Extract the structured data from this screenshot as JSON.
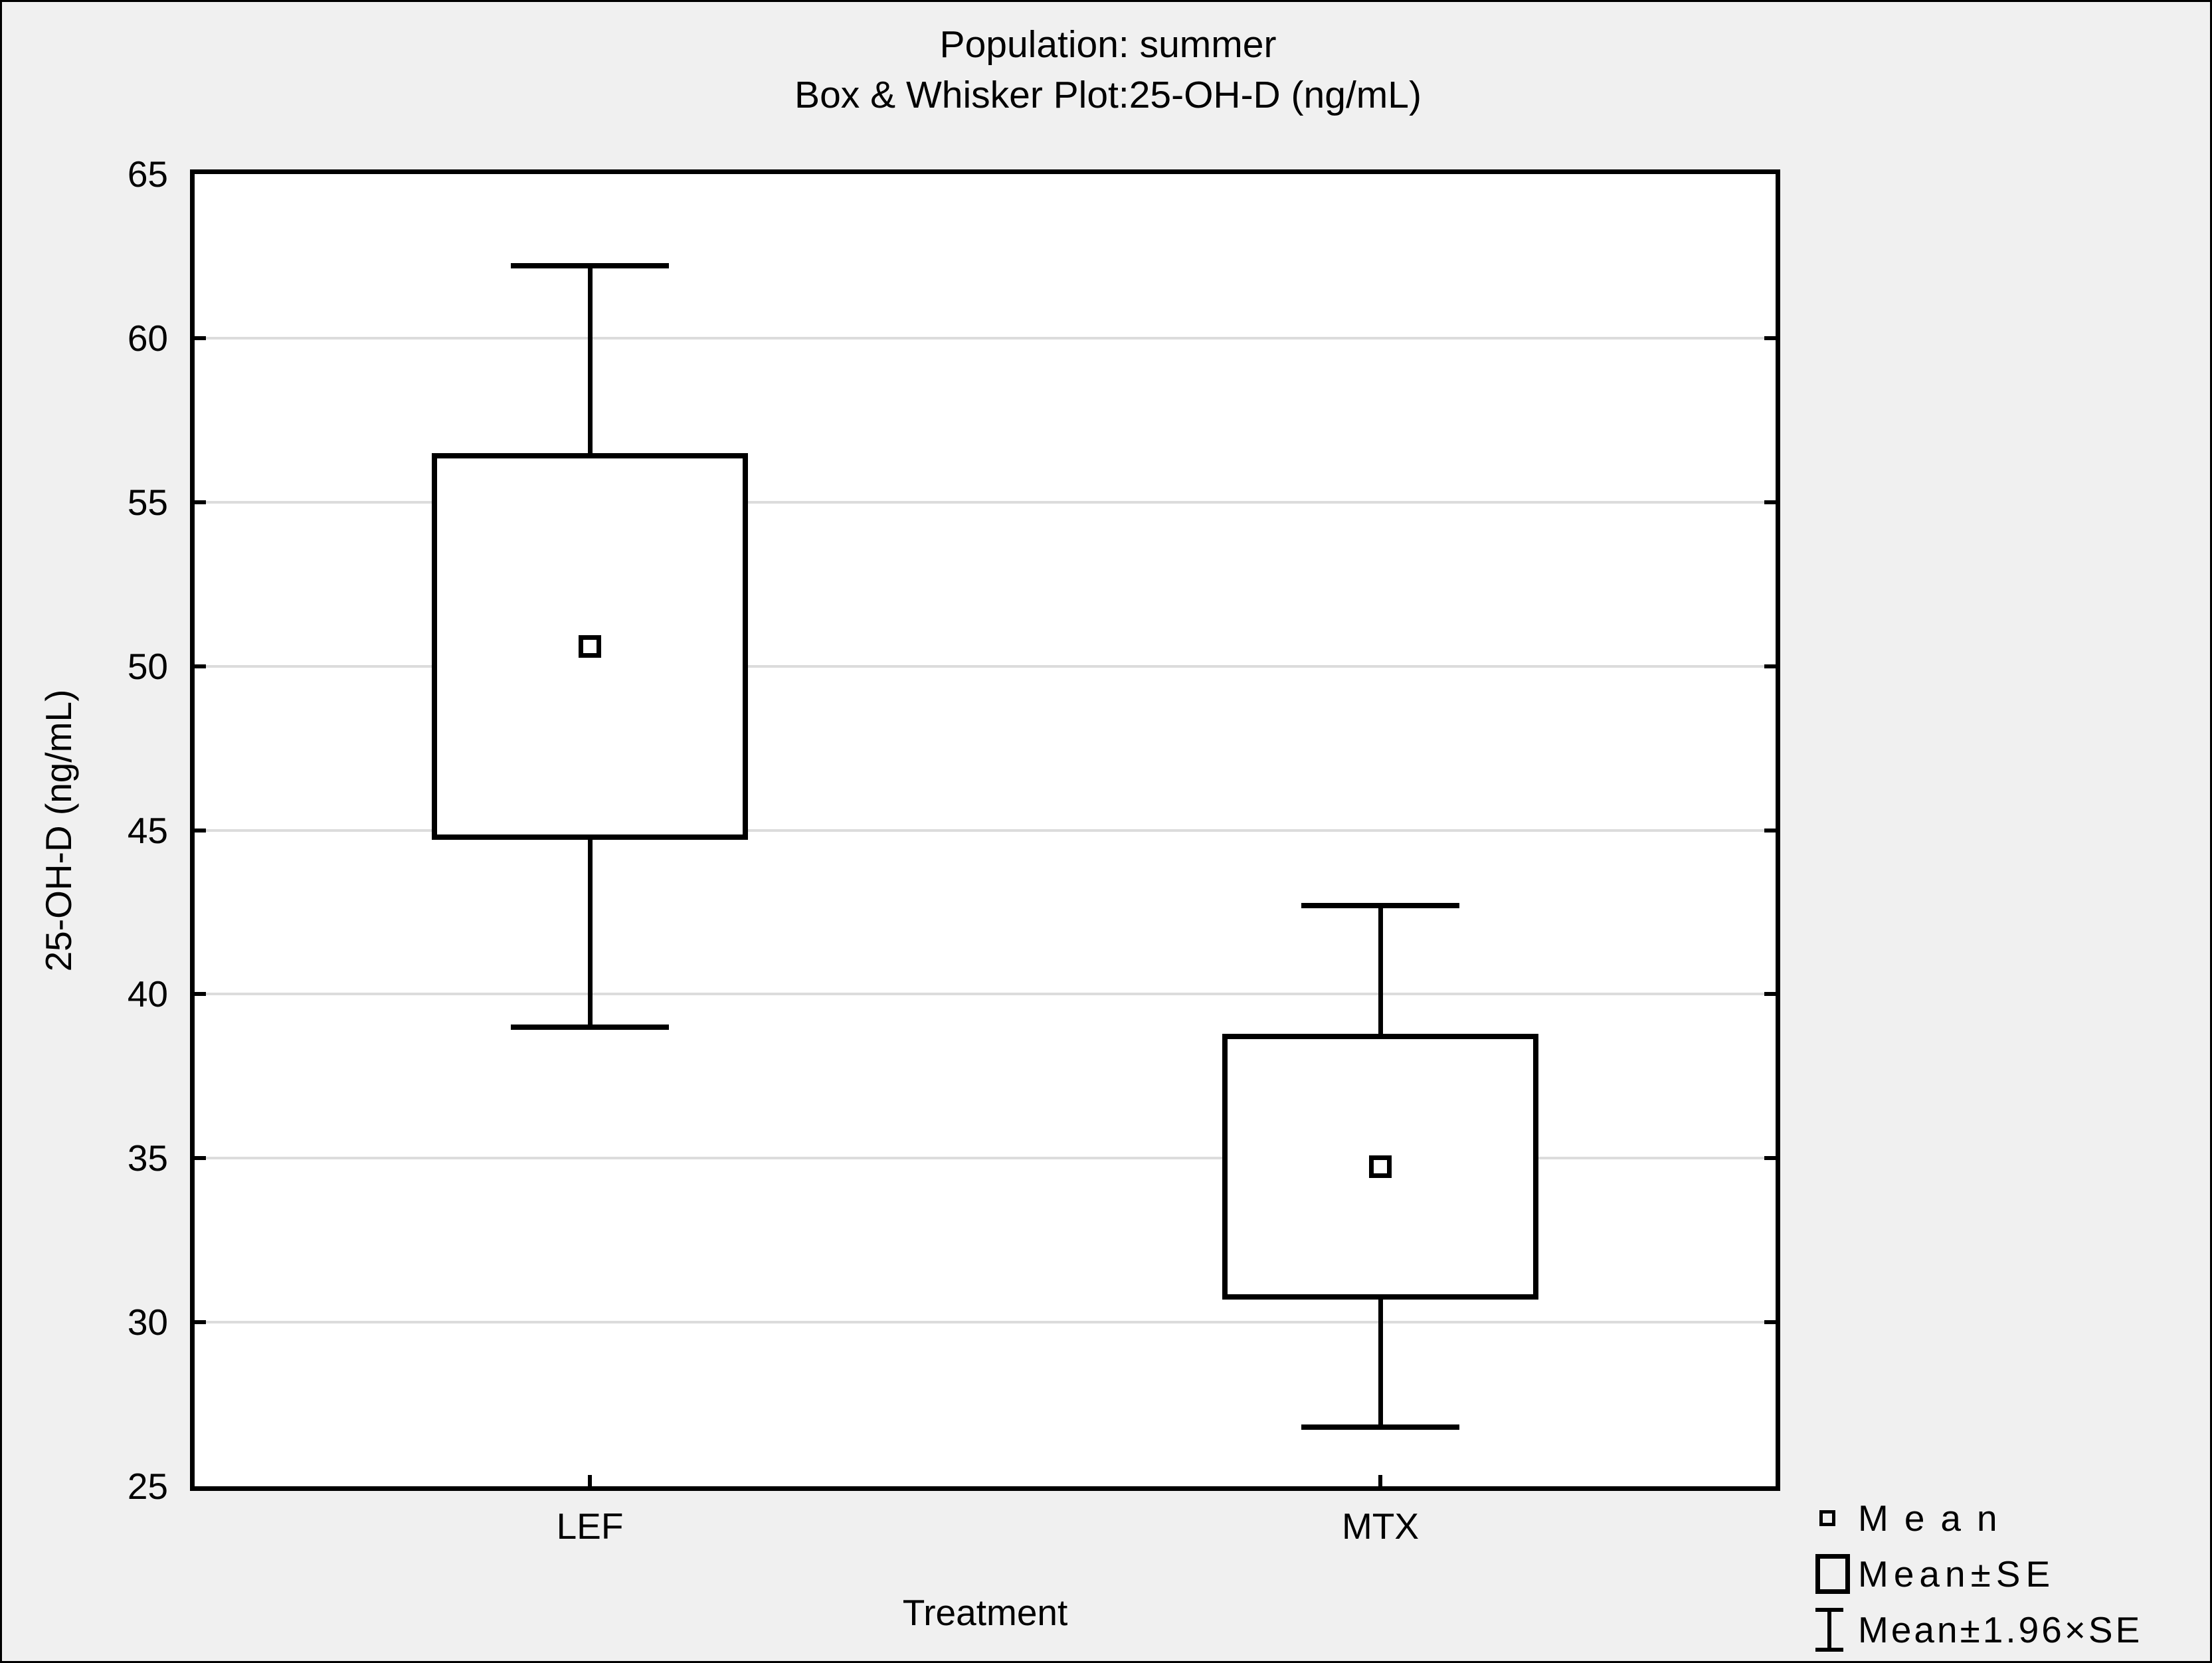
{
  "figure": {
    "background": "#f0f0f0",
    "plot_background": "#ffffff",
    "line_color": "#000000",
    "grid_color": "#dcdcdc"
  },
  "chart_data": {
    "type": "box",
    "title": "Population: summer",
    "subtitle": "Box & Whisker Plot:25-OH-D (ng/mL)",
    "xlabel": "Treatment",
    "ylabel": "25-OH-D (ng/mL)",
    "ylim": [
      25,
      65
    ],
    "yticks": [
      25,
      30,
      35,
      40,
      45,
      50,
      55,
      60,
      65
    ],
    "grid": "horizontal-on",
    "legend_position": "bottom-right",
    "categories": [
      "LEF",
      "MTX"
    ],
    "series": [
      {
        "category": "LEF",
        "mean": 50.6,
        "box_low": 44.7,
        "box_high": 56.5,
        "whisker_low": 39.0,
        "whisker_high": 62.2
      },
      {
        "category": "MTX",
        "mean": 34.75,
        "box_low": 30.7,
        "box_high": 38.8,
        "whisker_low": 26.8,
        "whisker_high": 42.7
      }
    ],
    "legend": [
      {
        "symbol": "small-square",
        "label": "Mean"
      },
      {
        "symbol": "box",
        "label": "Mean±SE"
      },
      {
        "symbol": "whisker",
        "label": "Mean±1.96×SE"
      }
    ]
  }
}
